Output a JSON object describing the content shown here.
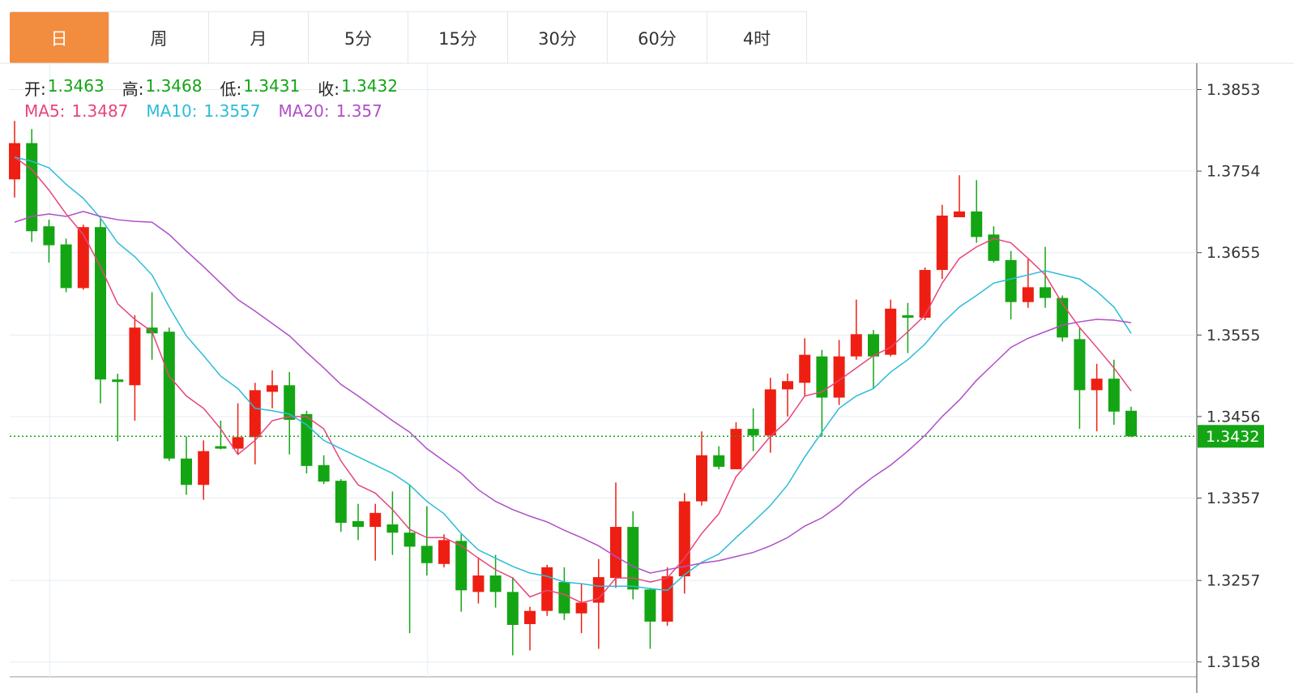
{
  "tabs": [
    "日",
    "周",
    "月",
    "5分",
    "15分",
    "30分",
    "60分",
    "4时"
  ],
  "active_tab": 0,
  "chart_data": {
    "type": "candlestick",
    "info_labels": [
      "开:",
      "高:",
      "低:",
      "收:"
    ],
    "up_color": "#ee1f12",
    "down_color": "#14a514",
    "ylim": [
      1.314,
      1.3885
    ],
    "yticks": [
      1.3853,
      1.3754,
      1.3655,
      1.3555,
      1.3456,
      1.3357,
      1.3257,
      1.3158
    ],
    "grid": true,
    "open": [
      1.3744,
      1.3788,
      1.3687,
      1.3665,
      1.3612,
      1.3686,
      1.3501,
      1.3494,
      1.3564,
      1.3559,
      1.3405,
      1.3373,
      1.342,
      1.3417,
      1.3431,
      1.3486,
      1.3494,
      1.3459,
      1.3397,
      1.3378,
      1.3329,
      1.3322,
      1.3325,
      1.3315,
      1.3299,
      1.3277,
      1.3305,
      1.3243,
      1.3263,
      1.3243,
      1.3204,
      1.322,
      1.3255,
      1.3217,
      1.323,
      1.326,
      1.3322,
      1.3246,
      1.3207,
      1.3262,
      1.3353,
      1.3409,
      1.3392,
      1.3441,
      1.3433,
      1.3489,
      1.3497,
      1.3529,
      1.3479,
      1.3529,
      1.3556,
      1.3531,
      1.3579,
      1.3576,
      1.3634,
      1.3698,
      1.3705,
      1.3677,
      1.3646,
      1.3595,
      1.3613,
      1.36,
      1.355,
      1.3488,
      1.3502,
      1.3463
    ],
    "high": [
      1.3815,
      1.3805,
      1.3695,
      1.3672,
      1.3689,
      1.3697,
      1.3508,
      1.3579,
      1.3607,
      1.3564,
      1.3432,
      1.3427,
      1.3451,
      1.3472,
      1.3497,
      1.3512,
      1.351,
      1.3463,
      1.3409,
      1.338,
      1.335,
      1.335,
      1.3365,
      1.3373,
      1.3347,
      1.3313,
      1.3313,
      1.3285,
      1.3288,
      1.3261,
      1.3225,
      1.3276,
      1.3273,
      1.3253,
      1.3283,
      1.3376,
      1.3341,
      1.3248,
      1.3273,
      1.3363,
      1.3438,
      1.342,
      1.3449,
      1.3466,
      1.3503,
      1.3508,
      1.3551,
      1.3537,
      1.3549,
      1.3598,
      1.3561,
      1.3598,
      1.3594,
      1.3637,
      1.3713,
      1.3749,
      1.3743,
      1.3687,
      1.3657,
      1.3647,
      1.3662,
      1.3603,
      1.3564,
      1.352,
      1.3525,
      1.3468
    ],
    "low": [
      1.3722,
      1.3668,
      1.3643,
      1.3607,
      1.361,
      1.3472,
      1.3426,
      1.3451,
      1.3525,
      1.3402,
      1.3361,
      1.3355,
      1.3416,
      1.341,
      1.3398,
      1.3466,
      1.341,
      1.3387,
      1.3374,
      1.3316,
      1.3306,
      1.3281,
      1.3288,
      1.3193,
      1.3263,
      1.3273,
      1.3219,
      1.3229,
      1.3224,
      1.3166,
      1.3172,
      1.3214,
      1.3209,
      1.3193,
      1.3174,
      1.3248,
      1.3234,
      1.3174,
      1.3202,
      1.3241,
      1.3348,
      1.3392,
      1.3392,
      1.3414,
      1.3412,
      1.3456,
      1.348,
      1.3432,
      1.347,
      1.3525,
      1.349,
      1.3529,
      1.3533,
      1.3573,
      1.3623,
      1.3698,
      1.3667,
      1.3643,
      1.3574,
      1.3588,
      1.3588,
      1.3547,
      1.3441,
      1.3438,
      1.3446,
      1.3431
    ],
    "close": [
      1.3788,
      1.3681,
      1.3664,
      1.3612,
      1.3686,
      1.3501,
      1.3498,
      1.3564,
      1.3557,
      1.3405,
      1.3373,
      1.3414,
      1.3417,
      1.3431,
      1.3488,
      1.3494,
      1.3452,
      1.3396,
      1.3377,
      1.3327,
      1.3322,
      1.3339,
      1.3315,
      1.3298,
      1.3278,
      1.3306,
      1.3245,
      1.3263,
      1.3243,
      1.3203,
      1.322,
      1.3273,
      1.3217,
      1.323,
      1.3261,
      1.3322,
      1.3246,
      1.3207,
      1.3262,
      1.3353,
      1.3409,
      1.3395,
      1.3441,
      1.3433,
      1.3489,
      1.3499,
      1.3531,
      1.3479,
      1.3529,
      1.3556,
      1.3529,
      1.3587,
      1.3576,
      1.3634,
      1.37,
      1.3705,
      1.3674,
      1.3645,
      1.3595,
      1.3613,
      1.36,
      1.3552,
      1.3488,
      1.3502,
      1.3462,
      1.3432
    ],
    "series": [
      {
        "name": "MA5:",
        "color": "#e8457a",
        "values": [
          1.3771,
          1.3756,
          1.3731,
          1.3702,
          1.3677,
          1.3638,
          1.3593,
          1.3574,
          1.3559,
          1.3505,
          1.3481,
          1.3466,
          1.3441,
          1.341,
          1.3427,
          1.3451,
          1.3456,
          1.3456,
          1.3441,
          1.3402,
          1.3373,
          1.3363,
          1.3343,
          1.3319,
          1.3309,
          1.3309,
          1.3299,
          1.3284,
          1.327,
          1.326,
          1.3237,
          1.3245,
          1.324,
          1.323,
          1.3235,
          1.326,
          1.326,
          1.3255,
          1.326,
          1.3284,
          1.3314,
          1.3338,
          1.3383,
          1.3407,
          1.3432,
          1.3451,
          1.3481,
          1.3486,
          1.35,
          1.3515,
          1.353,
          1.354,
          1.3559,
          1.3579,
          1.3618,
          1.3648,
          1.3662,
          1.3672,
          1.3667,
          1.3648,
          1.3628,
          1.3593,
          1.3564,
          1.354,
          1.3515,
          1.3487
        ]
      },
      {
        "name": "MA10:",
        "color": "#2bbcd8",
        "values": [
          1.3771,
          1.3766,
          1.3758,
          1.3738,
          1.3721,
          1.3697,
          1.3667,
          1.365,
          1.3628,
          1.3589,
          1.3554,
          1.353,
          1.3505,
          1.349,
          1.3466,
          1.3463,
          1.3459,
          1.3446,
          1.3427,
          1.3417,
          1.3407,
          1.3397,
          1.3387,
          1.3373,
          1.3353,
          1.3338,
          1.3314,
          1.3294,
          1.3284,
          1.3274,
          1.3266,
          1.3262,
          1.3255,
          1.3253,
          1.325,
          1.325,
          1.325,
          1.3247,
          1.3245,
          1.3264,
          1.3279,
          1.3289,
          1.3309,
          1.3328,
          1.3348,
          1.3373,
          1.3407,
          1.3437,
          1.3466,
          1.3481,
          1.349,
          1.351,
          1.3525,
          1.3544,
          1.3569,
          1.3589,
          1.3603,
          1.3618,
          1.3623,
          1.3628,
          1.3633,
          1.3628,
          1.3623,
          1.3608,
          1.3589,
          1.3557
        ]
      },
      {
        "name": "MA20:",
        "color": "#b04fc8",
        "values": [
          1.3692,
          1.3699,
          1.3702,
          1.3699,
          1.3705,
          1.3699,
          1.3695,
          1.3693,
          1.3692,
          1.3677,
          1.3657,
          1.3638,
          1.3618,
          1.3598,
          1.3584,
          1.3569,
          1.3554,
          1.3534,
          1.3515,
          1.3495,
          1.3481,
          1.3466,
          1.3451,
          1.3437,
          1.3417,
          1.3402,
          1.3387,
          1.3367,
          1.3353,
          1.3343,
          1.3335,
          1.3328,
          1.3318,
          1.3309,
          1.3299,
          1.3286,
          1.3274,
          1.3266,
          1.327,
          1.3274,
          1.3278,
          1.3281,
          1.3286,
          1.3291,
          1.3299,
          1.3309,
          1.3323,
          1.3333,
          1.3348,
          1.3367,
          1.3383,
          1.3397,
          1.3414,
          1.3433,
          1.3456,
          1.3476,
          1.35,
          1.352,
          1.354,
          1.3551,
          1.3559,
          1.3567,
          1.3571,
          1.3574,
          1.3573,
          1.357
        ]
      }
    ]
  }
}
